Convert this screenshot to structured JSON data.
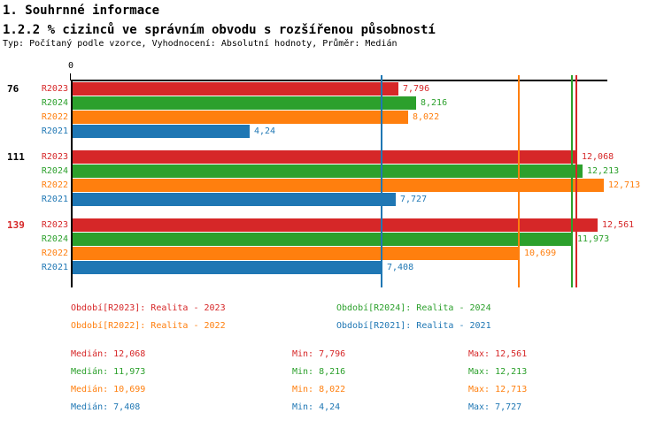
{
  "header": {
    "title_line1": "1. Souhrnné informace",
    "title_line2": "1.2.2 % cizinců ve správním obvodu s rozšířenou působností",
    "subtitle": "Typ: Počítaný podle vzorce, Vyhodnocení: Absolutní hodnoty, Průměr: Medián"
  },
  "colors": {
    "R2023": "#d62728",
    "R2024": "#2ca02c",
    "R2022": "#ff7f0e",
    "R2021": "#1f77b4",
    "axis": "#000000",
    "group_label_default": "#000000",
    "group_label_highlight": "#d62728"
  },
  "chart_data": {
    "type": "bar",
    "orientation": "horizontal",
    "title": "1.2.2 % cizinců ve správním obvodu s rozšířenou působností",
    "x_axis": {
      "zero_label": "0",
      "min": 0,
      "max": 12.85,
      "grid": false
    },
    "series_order": [
      "R2023",
      "R2024",
      "R2022",
      "R2021"
    ],
    "groups": [
      {
        "label": "76",
        "highlight": false,
        "bars": [
          {
            "series": "R2023",
            "value": 7.796,
            "label": "7,796"
          },
          {
            "series": "R2024",
            "value": 8.216,
            "label": "8,216"
          },
          {
            "series": "R2022",
            "value": 8.022,
            "label": "8,022"
          },
          {
            "series": "R2021",
            "value": 4.24,
            "label": "4,24"
          }
        ]
      },
      {
        "label": "111",
        "highlight": false,
        "bars": [
          {
            "series": "R2023",
            "value": 12.068,
            "label": "12,068"
          },
          {
            "series": "R2024",
            "value": 12.213,
            "label": "12,213"
          },
          {
            "series": "R2022",
            "value": 12.713,
            "label": "12,713"
          },
          {
            "series": "R2021",
            "value": 7.727,
            "label": "7,727"
          }
        ]
      },
      {
        "label": "139",
        "highlight": true,
        "bars": [
          {
            "series": "R2023",
            "value": 12.561,
            "label": "12,561"
          },
          {
            "series": "R2024",
            "value": 11.973,
            "label": "11,973"
          },
          {
            "series": "R2022",
            "value": 10.699,
            "label": "10,699"
          },
          {
            "series": "R2021",
            "value": 7.408,
            "label": "7,408"
          }
        ]
      }
    ],
    "median_lines": [
      {
        "series": "R2021",
        "value": 7.408
      },
      {
        "series": "R2022",
        "value": 10.699
      },
      {
        "series": "R2024",
        "value": 11.973
      },
      {
        "series": "R2023",
        "value": 12.068
      }
    ]
  },
  "legend": [
    {
      "series": "R2023",
      "text": "Období[R2023]: Realita - 2023",
      "col": 0,
      "row": 0
    },
    {
      "series": "R2024",
      "text": "Období[R2024]: Realita - 2024",
      "col": 1,
      "row": 0
    },
    {
      "series": "R2022",
      "text": "Období[R2022]: Realita - 2022",
      "col": 0,
      "row": 1
    },
    {
      "series": "R2021",
      "text": "Období[R2021]: Realita - 2021",
      "col": 1,
      "row": 1
    }
  ],
  "stats": [
    {
      "series": "R2023",
      "median": "Medián: 12,068",
      "min": "Min: 7,796",
      "max": "Max: 12,561"
    },
    {
      "series": "R2024",
      "median": "Medián: 11,973",
      "min": "Min: 8,216",
      "max": "Max: 12,213"
    },
    {
      "series": "R2022",
      "median": "Medián: 10,699",
      "min": "Min: 8,022",
      "max": "Max: 12,713"
    },
    {
      "series": "R2021",
      "median": "Medián: 7,408",
      "min": "Min: 4,24",
      "max": "Max: 7,727"
    }
  ]
}
